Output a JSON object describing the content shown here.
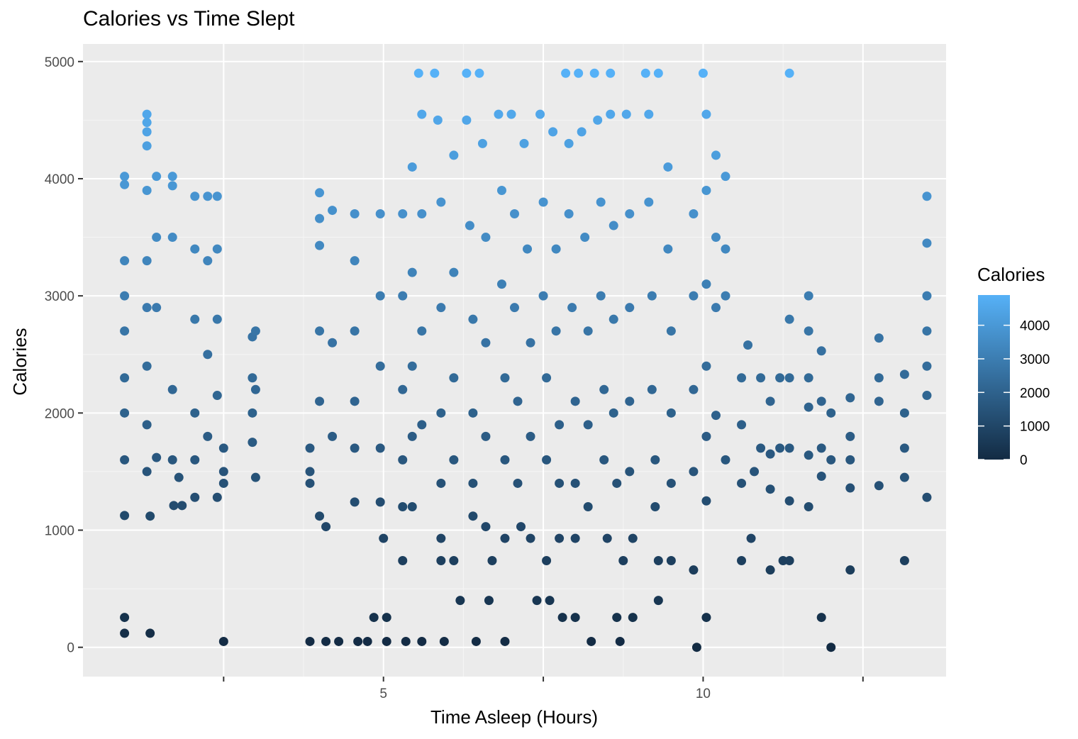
{
  "chart_data": {
    "type": "scatter",
    "title": "Calories vs Time Slept",
    "xlabel": "Time Asleep (Hours)",
    "ylabel": "Calories",
    "xlim": [
      0.3,
      13.8
    ],
    "ylim": [
      -250,
      5150
    ],
    "xticks": [
      2.5,
      5,
      7.5,
      10,
      12.5
    ],
    "xtick_labels": [
      "",
      "5",
      "",
      "10",
      ""
    ],
    "yticks": [
      0,
      1000,
      2000,
      3000,
      4000,
      5000
    ],
    "ytick_labels": [
      "0",
      "1000",
      "2000",
      "3000",
      "4000",
      "5000"
    ],
    "grid": true,
    "legend": {
      "title": "Calories",
      "placement": "right",
      "type": "colorbar",
      "range": [
        0,
        4900
      ],
      "ticks": [
        0,
        1000,
        2000,
        3000,
        4000
      ],
      "tick_labels": [
        "0",
        "1000",
        "2000",
        "3000",
        "4000"
      ],
      "color_low": "#132B43",
      "color_high": "#56B1F7"
    },
    "colors": {
      "panel_background": "#EBEBEB",
      "grid_major": "#FFFFFF",
      "grid_minor": "#F5F5F5",
      "axis_text": "#4D4D4D"
    },
    "series": [
      {
        "values": [
          [
            0.95,
            255
          ],
          [
            0.95,
            120
          ],
          [
            0.95,
            1125
          ],
          [
            0.95,
            1600
          ],
          [
            0.95,
            2000
          ],
          [
            0.95,
            2300
          ],
          [
            0.95,
            2700
          ],
          [
            0.95,
            3000
          ],
          [
            0.95,
            3300
          ],
          [
            0.95,
            4020
          ],
          [
            0.95,
            3950
          ],
          [
            1.3,
            4550
          ],
          [
            1.3,
            4480
          ],
          [
            1.3,
            4400
          ],
          [
            1.3,
            4280
          ],
          [
            1.3,
            3900
          ],
          [
            1.3,
            3300
          ],
          [
            1.3,
            2900
          ],
          [
            1.3,
            2400
          ],
          [
            1.3,
            1900
          ],
          [
            1.3,
            1500
          ],
          [
            1.35,
            1120
          ],
          [
            1.35,
            120
          ],
          [
            1.45,
            4020
          ],
          [
            1.45,
            3500
          ],
          [
            1.45,
            2900
          ],
          [
            1.45,
            1620
          ],
          [
            1.7,
            4020
          ],
          [
            1.7,
            3940
          ],
          [
            1.7,
            3500
          ],
          [
            1.7,
            2200
          ],
          [
            1.7,
            1600
          ],
          [
            1.72,
            1210
          ],
          [
            1.85,
            1210
          ],
          [
            1.8,
            1450
          ],
          [
            2.05,
            3850
          ],
          [
            2.05,
            3400
          ],
          [
            2.05,
            2800
          ],
          [
            2.05,
            2000
          ],
          [
            2.05,
            1600
          ],
          [
            2.05,
            1280
          ],
          [
            2.25,
            3850
          ],
          [
            2.25,
            3300
          ],
          [
            2.25,
            2500
          ],
          [
            2.25,
            1800
          ],
          [
            2.4,
            3850
          ],
          [
            2.4,
            3400
          ],
          [
            2.4,
            2800
          ],
          [
            2.4,
            2150
          ],
          [
            2.4,
            1280
          ],
          [
            2.5,
            1700
          ],
          [
            2.5,
            1500
          ],
          [
            2.5,
            1400
          ],
          [
            2.5,
            50
          ],
          [
            2.95,
            2650
          ],
          [
            2.95,
            2300
          ],
          [
            2.95,
            2000
          ],
          [
            2.95,
            1750
          ],
          [
            3.0,
            2700
          ],
          [
            3.0,
            2200
          ],
          [
            3.0,
            1450
          ],
          [
            3.85,
            1700
          ],
          [
            3.85,
            1500
          ],
          [
            3.85,
            1400
          ],
          [
            3.85,
            50
          ],
          [
            4.0,
            3880
          ],
          [
            4.0,
            3660
          ],
          [
            4.0,
            3430
          ],
          [
            4.0,
            2700
          ],
          [
            4.0,
            2100
          ],
          [
            4.0,
            1120
          ],
          [
            4.1,
            50
          ],
          [
            4.1,
            1030
          ],
          [
            4.2,
            3730
          ],
          [
            4.2,
            2600
          ],
          [
            4.2,
            1800
          ],
          [
            4.3,
            50
          ],
          [
            4.55,
            3700
          ],
          [
            4.55,
            3300
          ],
          [
            4.55,
            2700
          ],
          [
            4.55,
            2100
          ],
          [
            4.55,
            1700
          ],
          [
            4.55,
            1240
          ],
          [
            4.6,
            50
          ],
          [
            4.75,
            50
          ],
          [
            4.85,
            255
          ],
          [
            4.95,
            3700
          ],
          [
            4.95,
            3000
          ],
          [
            4.95,
            2400
          ],
          [
            4.95,
            1700
          ],
          [
            4.95,
            1240
          ],
          [
            5.0,
            930
          ],
          [
            5.05,
            50
          ],
          [
            5.05,
            255
          ],
          [
            5.3,
            3700
          ],
          [
            5.3,
            3000
          ],
          [
            5.3,
            2200
          ],
          [
            5.3,
            1600
          ],
          [
            5.3,
            1200
          ],
          [
            5.3,
            740
          ],
          [
            5.35,
            50
          ],
          [
            5.45,
            4100
          ],
          [
            5.45,
            3200
          ],
          [
            5.45,
            2400
          ],
          [
            5.45,
            1800
          ],
          [
            5.45,
            1200
          ],
          [
            5.55,
            4900
          ],
          [
            5.6,
            4550
          ],
          [
            5.6,
            3700
          ],
          [
            5.6,
            2700
          ],
          [
            5.6,
            1900
          ],
          [
            5.6,
            50
          ],
          [
            5.8,
            4900
          ],
          [
            5.85,
            4500
          ],
          [
            5.9,
            3800
          ],
          [
            5.9,
            2900
          ],
          [
            5.9,
            2000
          ],
          [
            5.9,
            1400
          ],
          [
            5.9,
            930
          ],
          [
            5.9,
            740
          ],
          [
            5.95,
            50
          ],
          [
            6.1,
            4200
          ],
          [
            6.1,
            3200
          ],
          [
            6.1,
            2300
          ],
          [
            6.1,
            1600
          ],
          [
            6.1,
            740
          ],
          [
            6.2,
            400
          ],
          [
            6.3,
            4900
          ],
          [
            6.3,
            4500
          ],
          [
            6.35,
            3600
          ],
          [
            6.4,
            2800
          ],
          [
            6.4,
            2000
          ],
          [
            6.4,
            1400
          ],
          [
            6.4,
            1120
          ],
          [
            6.45,
            50
          ],
          [
            6.5,
            4900
          ],
          [
            6.55,
            4300
          ],
          [
            6.6,
            3500
          ],
          [
            6.6,
            2600
          ],
          [
            6.6,
            1800
          ],
          [
            6.6,
            1030
          ],
          [
            6.65,
            400
          ],
          [
            6.7,
            740
          ],
          [
            6.8,
            4550
          ],
          [
            6.85,
            3900
          ],
          [
            6.85,
            3100
          ],
          [
            6.9,
            2300
          ],
          [
            6.9,
            1600
          ],
          [
            6.9,
            930
          ],
          [
            6.9,
            50
          ],
          [
            7.0,
            4550
          ],
          [
            7.05,
            3700
          ],
          [
            7.05,
            2900
          ],
          [
            7.1,
            2100
          ],
          [
            7.1,
            1400
          ],
          [
            7.15,
            1030
          ],
          [
            7.2,
            4300
          ],
          [
            7.25,
            3400
          ],
          [
            7.3,
            2600
          ],
          [
            7.3,
            1800
          ],
          [
            7.3,
            930
          ],
          [
            7.4,
            400
          ],
          [
            7.45,
            4550
          ],
          [
            7.5,
            3800
          ],
          [
            7.5,
            3000
          ],
          [
            7.55,
            2300
          ],
          [
            7.55,
            1600
          ],
          [
            7.55,
            740
          ],
          [
            7.6,
            400
          ],
          [
            7.65,
            4400
          ],
          [
            7.7,
            3400
          ],
          [
            7.7,
            2700
          ],
          [
            7.75,
            1900
          ],
          [
            7.75,
            1400
          ],
          [
            7.75,
            930
          ],
          [
            7.8,
            255
          ],
          [
            7.85,
            4900
          ],
          [
            7.9,
            4300
          ],
          [
            7.9,
            3700
          ],
          [
            7.95,
            2900
          ],
          [
            8.0,
            2100
          ],
          [
            8.0,
            1400
          ],
          [
            8.0,
            930
          ],
          [
            8.0,
            255
          ],
          [
            8.05,
            4900
          ],
          [
            8.1,
            4400
          ],
          [
            8.15,
            3500
          ],
          [
            8.2,
            2700
          ],
          [
            8.2,
            1900
          ],
          [
            8.2,
            1200
          ],
          [
            8.25,
            50
          ],
          [
            8.3,
            4900
          ],
          [
            8.35,
            4500
          ],
          [
            8.4,
            3800
          ],
          [
            8.4,
            3000
          ],
          [
            8.45,
            2200
          ],
          [
            8.45,
            1600
          ],
          [
            8.5,
            930
          ],
          [
            8.55,
            4900
          ],
          [
            8.55,
            4550
          ],
          [
            8.6,
            3600
          ],
          [
            8.6,
            2800
          ],
          [
            8.6,
            2000
          ],
          [
            8.65,
            1400
          ],
          [
            8.65,
            255
          ],
          [
            8.7,
            50
          ],
          [
            8.75,
            740
          ],
          [
            8.8,
            4550
          ],
          [
            8.85,
            3700
          ],
          [
            8.85,
            2900
          ],
          [
            8.85,
            2100
          ],
          [
            8.85,
            1500
          ],
          [
            8.9,
            930
          ],
          [
            8.9,
            255
          ],
          [
            9.1,
            4900
          ],
          [
            9.15,
            4550
          ],
          [
            9.15,
            3800
          ],
          [
            9.2,
            3000
          ],
          [
            9.2,
            2200
          ],
          [
            9.25,
            1600
          ],
          [
            9.25,
            1200
          ],
          [
            9.3,
            4900
          ],
          [
            9.3,
            740
          ],
          [
            9.3,
            400
          ],
          [
            9.45,
            4100
          ],
          [
            9.45,
            3400
          ],
          [
            9.5,
            2700
          ],
          [
            9.5,
            2000
          ],
          [
            9.5,
            1400
          ],
          [
            9.5,
            740
          ],
          [
            9.85,
            3700
          ],
          [
            9.85,
            3000
          ],
          [
            9.85,
            2200
          ],
          [
            9.85,
            1500
          ],
          [
            9.85,
            660
          ],
          [
            9.9,
            0
          ],
          [
            10.0,
            4900
          ],
          [
            10.05,
            4550
          ],
          [
            10.05,
            3900
          ],
          [
            10.05,
            3100
          ],
          [
            10.05,
            2400
          ],
          [
            10.05,
            1800
          ],
          [
            10.05,
            1250
          ],
          [
            10.05,
            255
          ],
          [
            10.2,
            4200
          ],
          [
            10.2,
            3500
          ],
          [
            10.2,
            2900
          ],
          [
            10.2,
            1980
          ],
          [
            10.35,
            4020
          ],
          [
            10.35,
            3400
          ],
          [
            10.35,
            3000
          ],
          [
            10.35,
            1600
          ],
          [
            10.6,
            2300
          ],
          [
            10.6,
            1900
          ],
          [
            10.6,
            1400
          ],
          [
            10.6,
            740
          ],
          [
            10.7,
            2580
          ],
          [
            10.75,
            930
          ],
          [
            10.8,
            1500
          ],
          [
            10.9,
            2300
          ],
          [
            10.9,
            1700
          ],
          [
            11.05,
            2100
          ],
          [
            11.05,
            1650
          ],
          [
            11.05,
            1350
          ],
          [
            11.05,
            660
          ],
          [
            11.2,
            2300
          ],
          [
            11.2,
            1700
          ],
          [
            11.25,
            740
          ],
          [
            11.35,
            4900
          ],
          [
            11.35,
            2800
          ],
          [
            11.35,
            2300
          ],
          [
            11.35,
            1700
          ],
          [
            11.35,
            1250
          ],
          [
            11.35,
            740
          ],
          [
            11.65,
            3000
          ],
          [
            11.65,
            2700
          ],
          [
            11.65,
            2300
          ],
          [
            11.65,
            2050
          ],
          [
            11.65,
            1640
          ],
          [
            11.65,
            1200
          ],
          [
            11.85,
            2530
          ],
          [
            11.85,
            2100
          ],
          [
            11.85,
            1700
          ],
          [
            11.85,
            1460
          ],
          [
            11.85,
            255
          ],
          [
            12.0,
            2000
          ],
          [
            12.0,
            1600
          ],
          [
            12.0,
            0
          ],
          [
            12.3,
            2130
          ],
          [
            12.3,
            1800
          ],
          [
            12.3,
            1600
          ],
          [
            12.3,
            1360
          ],
          [
            12.3,
            660
          ],
          [
            12.75,
            2640
          ],
          [
            12.75,
            2300
          ],
          [
            12.75,
            2100
          ],
          [
            12.75,
            1380
          ],
          [
            13.15,
            2330
          ],
          [
            13.15,
            2000
          ],
          [
            13.15,
            1700
          ],
          [
            13.15,
            1450
          ],
          [
            13.15,
            740
          ],
          [
            13.5,
            3850
          ],
          [
            13.5,
            3450
          ],
          [
            13.5,
            3000
          ],
          [
            13.5,
            2700
          ],
          [
            13.5,
            2400
          ],
          [
            13.5,
            2150
          ],
          [
            13.5,
            1280
          ]
        ]
      }
    ]
  }
}
